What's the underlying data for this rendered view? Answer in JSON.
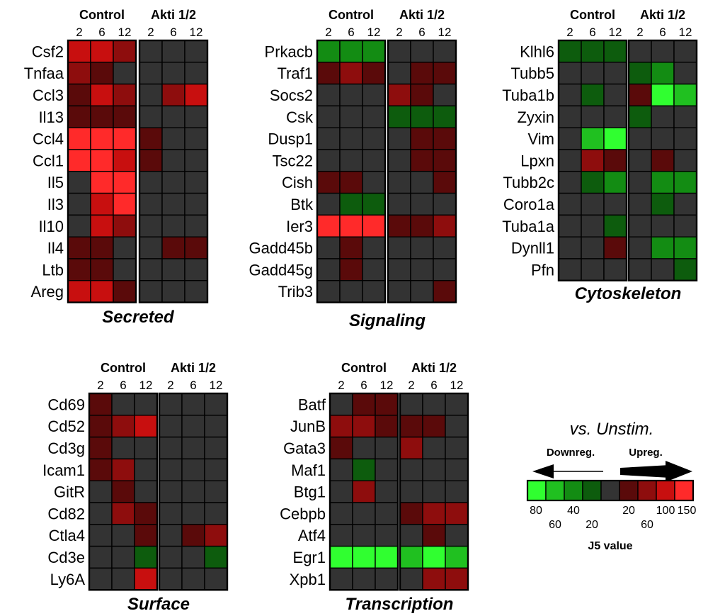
{
  "colors": {
    "cell_none": "#333333",
    "scale": {
      "r1": "#5a0a0a",
      "r2": "#8e0d0d",
      "r3": "#c80f0f",
      "r4": "#ff2a2a",
      "g1": "#0d5c0d",
      "g2": "#138c13",
      "g3": "#20c020",
      "g4": "#30ff30"
    }
  },
  "chart_data": [
    {
      "type": "heatmap",
      "title": "Secreted",
      "groups": [
        "Control",
        "Akti 1/2"
      ],
      "timepoints": [
        "2",
        "6",
        "12"
      ],
      "rows": [
        {
          "gene": "Csf2",
          "values": [
            "r3",
            "r3",
            "r2",
            "0",
            "0",
            "0"
          ]
        },
        {
          "gene": "Tnfaa",
          "values": [
            "r2",
            "r1",
            "0",
            "0",
            "0",
            "0"
          ]
        },
        {
          "gene": "Ccl3",
          "values": [
            "r1",
            "r3",
            "r2",
            "0",
            "r2",
            "r3"
          ]
        },
        {
          "gene": "Il13",
          "values": [
            "r1",
            "r1",
            "r1",
            "0",
            "0",
            "0"
          ]
        },
        {
          "gene": "Ccl4",
          "values": [
            "r4",
            "r4",
            "r4",
            "r1",
            "0",
            "0"
          ]
        },
        {
          "gene": "Ccl1",
          "values": [
            "r4",
            "r4",
            "r3",
            "r1",
            "0",
            "0"
          ]
        },
        {
          "gene": "Il5",
          "values": [
            "0",
            "r4",
            "r4",
            "0",
            "0",
            "0"
          ]
        },
        {
          "gene": "Il3",
          "values": [
            "0",
            "r3",
            "r4",
            "0",
            "0",
            "0"
          ]
        },
        {
          "gene": "Il10",
          "values": [
            "0",
            "r3",
            "r2",
            "0",
            "0",
            "0"
          ]
        },
        {
          "gene": "Il4",
          "values": [
            "r1",
            "r1",
            "0",
            "0",
            "r1",
            "r1"
          ]
        },
        {
          "gene": "Ltb",
          "values": [
            "r1",
            "r1",
            "0",
            "0",
            "0",
            "0"
          ]
        },
        {
          "gene": "Areg",
          "values": [
            "r3",
            "r3",
            "r1",
            "0",
            "0",
            "0"
          ]
        }
      ]
    },
    {
      "type": "heatmap",
      "title": "Signaling",
      "groups": [
        "Control",
        "Akti 1/2"
      ],
      "timepoints": [
        "2",
        "6",
        "12"
      ],
      "rows": [
        {
          "gene": "Prkacb",
          "values": [
            "g2",
            "g2",
            "g2",
            "0",
            "0",
            "0"
          ]
        },
        {
          "gene": "Traf1",
          "values": [
            "r1",
            "r2",
            "r1",
            "0",
            "r1",
            "r1"
          ]
        },
        {
          "gene": "Socs2",
          "values": [
            "0",
            "0",
            "0",
            "r2",
            "r1",
            "0"
          ]
        },
        {
          "gene": "Csk",
          "values": [
            "0",
            "0",
            "0",
            "g1",
            "g1",
            "g1"
          ]
        },
        {
          "gene": "Dusp1",
          "values": [
            "0",
            "0",
            "0",
            "0",
            "r1",
            "r1"
          ]
        },
        {
          "gene": "Tsc22",
          "values": [
            "0",
            "0",
            "0",
            "0",
            "r1",
            "r1"
          ]
        },
        {
          "gene": "Cish",
          "values": [
            "r1",
            "r1",
            "0",
            "0",
            "0",
            "r1"
          ]
        },
        {
          "gene": "Btk",
          "values": [
            "0",
            "g1",
            "g1",
            "0",
            "0",
            "0"
          ]
        },
        {
          "gene": "Ier3",
          "values": [
            "r4",
            "r4",
            "r4",
            "r1",
            "r1",
            "r2"
          ]
        },
        {
          "gene": "Gadd45b",
          "values": [
            "0",
            "r1",
            "0",
            "0",
            "0",
            "0"
          ]
        },
        {
          "gene": "Gadd45g",
          "values": [
            "0",
            "r1",
            "0",
            "0",
            "0",
            "0"
          ]
        },
        {
          "gene": "Trib3",
          "values": [
            "0",
            "0",
            "0",
            "0",
            "0",
            "r1"
          ]
        }
      ]
    },
    {
      "type": "heatmap",
      "title": "Cytoskeleton",
      "groups": [
        "Control",
        "Akti 1/2"
      ],
      "timepoints": [
        "2",
        "6",
        "12"
      ],
      "rows": [
        {
          "gene": "Klhl6",
          "values": [
            "g1",
            "g1",
            "g1",
            "0",
            "0",
            "0"
          ]
        },
        {
          "gene": "Tubb5",
          "values": [
            "0",
            "0",
            "0",
            "g1",
            "g2",
            "0"
          ]
        },
        {
          "gene": "Tuba1b",
          "values": [
            "0",
            "g1",
            "0",
            "r1",
            "g4",
            "g3"
          ]
        },
        {
          "gene": "Zyxin",
          "values": [
            "0",
            "0",
            "0",
            "g1",
            "0",
            "0"
          ]
        },
        {
          "gene": "Vim",
          "values": [
            "0",
            "g3",
            "g4",
            "0",
            "0",
            "0"
          ]
        },
        {
          "gene": "Lpxn",
          "values": [
            "0",
            "r2",
            "r1",
            "0",
            "r1",
            "0"
          ]
        },
        {
          "gene": "Tubb2c",
          "values": [
            "0",
            "g1",
            "g2",
            "0",
            "g2",
            "g2"
          ]
        },
        {
          "gene": "Coro1a",
          "values": [
            "0",
            "0",
            "0",
            "0",
            "g1",
            "0"
          ]
        },
        {
          "gene": "Tuba1a",
          "values": [
            "0",
            "0",
            "g1",
            "0",
            "0",
            "0"
          ]
        },
        {
          "gene": "Dynll1",
          "values": [
            "0",
            "0",
            "r1",
            "0",
            "g2",
            "g2"
          ]
        },
        {
          "gene": "Pfn",
          "values": [
            "0",
            "0",
            "0",
            "0",
            "0",
            "g1"
          ]
        }
      ]
    },
    {
      "type": "heatmap",
      "title": "Surface",
      "groups": [
        "Control",
        "Akti 1/2"
      ],
      "timepoints": [
        "2",
        "6",
        "12"
      ],
      "rows": [
        {
          "gene": "Cd69",
          "values": [
            "r1",
            "0",
            "0",
            "0",
            "0",
            "0"
          ]
        },
        {
          "gene": "Cd52",
          "values": [
            "r1",
            "r2",
            "r3",
            "0",
            "0",
            "0"
          ]
        },
        {
          "gene": "Cd3g",
          "values": [
            "r1",
            "0",
            "0",
            "0",
            "0",
            "0"
          ]
        },
        {
          "gene": "Icam1",
          "values": [
            "r1",
            "r2",
            "0",
            "0",
            "0",
            "0"
          ]
        },
        {
          "gene": "GitR",
          "values": [
            "0",
            "r1",
            "0",
            "0",
            "0",
            "0"
          ]
        },
        {
          "gene": "Cd82",
          "values": [
            "0",
            "r2",
            "r1",
            "0",
            "0",
            "0"
          ]
        },
        {
          "gene": "Ctla4",
          "values": [
            "0",
            "0",
            "r1",
            "0",
            "r1",
            "r2"
          ]
        },
        {
          "gene": "Cd3e",
          "values": [
            "0",
            "0",
            "g1",
            "0",
            "0",
            "g1"
          ]
        },
        {
          "gene": "Ly6A",
          "values": [
            "0",
            "0",
            "r3",
            "0",
            "0",
            "0"
          ]
        }
      ]
    },
    {
      "type": "heatmap",
      "title": "Transcription",
      "groups": [
        "Control",
        "Akti 1/2"
      ],
      "timepoints": [
        "2",
        "6",
        "12"
      ],
      "rows": [
        {
          "gene": "Batf",
          "values": [
            "0",
            "r1",
            "r1",
            "0",
            "0",
            "0"
          ]
        },
        {
          "gene": "JunB",
          "values": [
            "r2",
            "r2",
            "r1",
            "r1",
            "r1",
            "0"
          ]
        },
        {
          "gene": "Gata3",
          "values": [
            "r1",
            "0",
            "0",
            "r2",
            "0",
            "0"
          ]
        },
        {
          "gene": "Maf1",
          "values": [
            "0",
            "g1",
            "0",
            "0",
            "0",
            "0"
          ]
        },
        {
          "gene": "Btg1",
          "values": [
            "0",
            "r2",
            "0",
            "0",
            "0",
            "0"
          ]
        },
        {
          "gene": "Cebpb",
          "values": [
            "0",
            "0",
            "0",
            "r1",
            "r2",
            "r2"
          ]
        },
        {
          "gene": "Atf4",
          "values": [
            "0",
            "0",
            "0",
            "0",
            "r1",
            "0"
          ]
        },
        {
          "gene": "Egr1",
          "values": [
            "g4",
            "g4",
            "g4",
            "g3",
            "g4",
            "g3"
          ]
        },
        {
          "gene": "Xpb1",
          "values": [
            "0",
            "0",
            "0",
            "0",
            "r2",
            "r2"
          ]
        }
      ]
    }
  ],
  "legend": {
    "title": "vs. Unstim.",
    "down_label": "Downreg.",
    "up_label": "Upreg.",
    "swatches": [
      "g4",
      "g3",
      "g2",
      "g1",
      "0",
      "r1",
      "r2",
      "r3",
      "r4"
    ],
    "ticks_upper": [
      "80",
      "40",
      "20",
      "100",
      "150"
    ],
    "ticks_lower": [
      "60",
      "20",
      "60"
    ],
    "value_label": "J5 value"
  }
}
